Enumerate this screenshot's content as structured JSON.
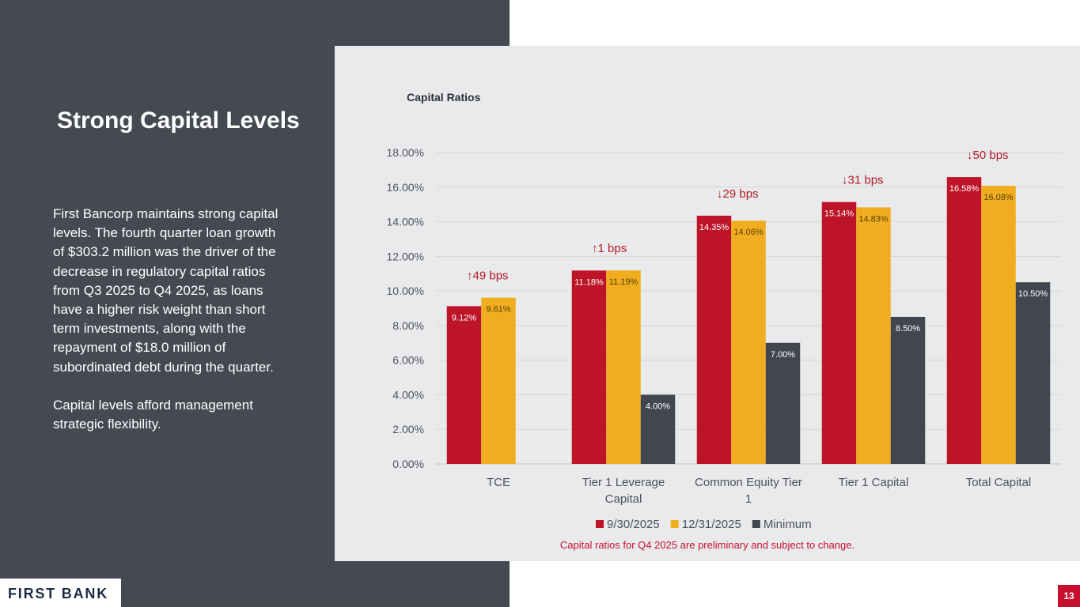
{
  "slide": {
    "title": "Strong Capital Levels",
    "paragraphs": [
      "First Bancorp maintains strong capital levels.  The fourth quarter loan growth of $303.2 million was the driver of the decrease in regulatory capital ratios from Q3 2025 to Q4 2025, as loans have a higher risk weight than short term investments, along with the repayment of $18.0 million of subordinated debt during the quarter.",
      "Capital levels afford management strategic flexibility."
    ],
    "logo_text": "FIRST BANK",
    "page_number": "13",
    "footnote": "Capital ratios for Q4 2025 are preliminary and subject to change."
  },
  "colors": {
    "panel_dark": "#454a52",
    "chart_bg": "#e9eaec",
    "series_1": "#be1428",
    "series_2": "#efad1f",
    "series_3": "#41464f",
    "annotation": "#b31b25"
  },
  "chart_data": {
    "type": "bar",
    "title": "Capital Ratios",
    "categories": [
      [
        "TCE"
      ],
      [
        "Tier 1 Leverage",
        "Capital"
      ],
      [
        "Common Equity Tier",
        "1"
      ],
      [
        "Tier 1 Capital"
      ],
      [
        "Total Capital"
      ]
    ],
    "series": [
      {
        "name": "9/30/2025",
        "values": [
          9.12,
          11.18,
          14.35,
          15.14,
          16.58
        ],
        "labels": [
          "9.12%",
          "11.18%",
          "14.35%",
          "15.14%",
          "16.58%"
        ]
      },
      {
        "name": "12/31/2025",
        "values": [
          9.61,
          11.19,
          14.06,
          14.83,
          16.08
        ],
        "labels": [
          "9.61%",
          "11.19%",
          "14.06%",
          "14.83%",
          "16.08%"
        ]
      },
      {
        "name": "Minimum",
        "values": [
          null,
          4.0,
          7.0,
          8.5,
          10.5
        ],
        "labels": [
          null,
          "4.00%",
          "7.00%",
          "8.50%",
          "10.50%"
        ]
      }
    ],
    "ylim": [
      0,
      18
    ],
    "yticks": [
      0,
      2,
      4,
      6,
      8,
      10,
      12,
      14,
      16,
      18
    ],
    "ytick_labels": [
      "0.00%",
      "2.00%",
      "4.00%",
      "6.00%",
      "8.00%",
      "10.00%",
      "12.00%",
      "14.00%",
      "16.00%",
      "18.00%"
    ],
    "grid": true,
    "legend_position": "bottom",
    "annotations": [
      {
        "category_index": 0,
        "direction": "up",
        "text": "49 bps"
      },
      {
        "category_index": 1,
        "direction": "up",
        "text": "1 bps"
      },
      {
        "category_index": 2,
        "direction": "down",
        "text": "29 bps"
      },
      {
        "category_index": 3,
        "direction": "down",
        "text": "31 bps"
      },
      {
        "category_index": 4,
        "direction": "down",
        "text": "50 bps"
      }
    ]
  }
}
